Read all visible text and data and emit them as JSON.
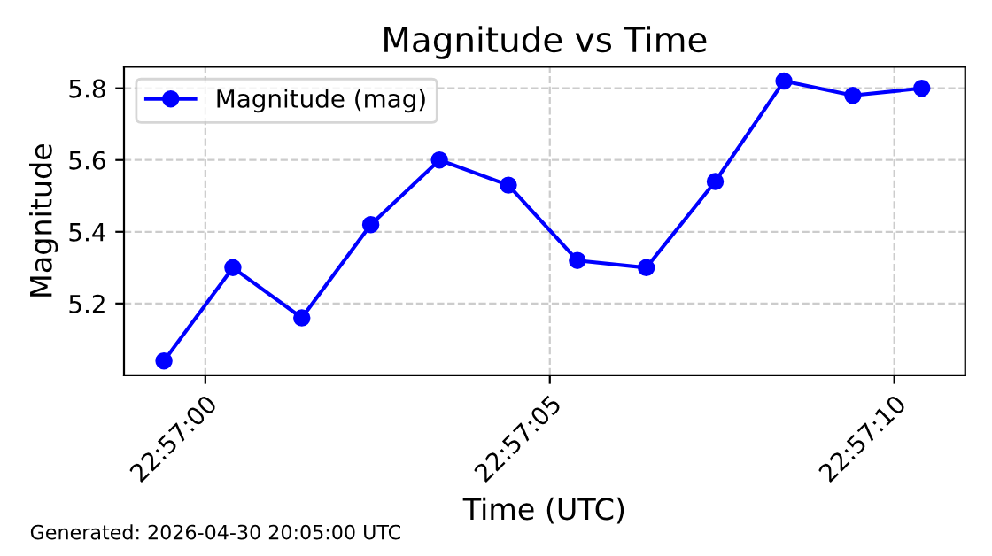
{
  "chart_data": {
    "type": "line",
    "title": "Magnitude vs Time",
    "xlabel": "Time (UTC)",
    "ylabel": "Magnitude",
    "x": [
      22.949833,
      22.950111,
      22.950389,
      22.950667,
      22.950944,
      22.951222,
      22.9515,
      22.951778,
      22.952056,
      22.952333,
      22.952611,
      22.952889
    ],
    "series": [
      {
        "name": "Magnitude (mag)",
        "color": "#0000ff",
        "values": [
          5.04,
          5.3,
          5.16,
          5.42,
          5.6,
          5.53,
          5.32,
          5.3,
          5.54,
          5.82,
          5.78,
          5.8
        ]
      }
    ],
    "xlim": [
      22.949672,
      22.953064
    ],
    "ylim": [
      5.0,
      5.86
    ],
    "xticks": [
      {
        "value": 22.95,
        "label": "22:57:00"
      },
      {
        "value": 22.951389,
        "label": "22:57:05"
      },
      {
        "value": 22.952778,
        "label": "22:57:10"
      }
    ],
    "yticks": [
      5.2,
      5.4,
      5.6,
      5.8
    ],
    "grid": true,
    "legend": "top left",
    "marker": "circle",
    "line_style": "solid",
    "annotations": [
      "Generated: 2026-04-30 20:05:00 UTC"
    ]
  }
}
